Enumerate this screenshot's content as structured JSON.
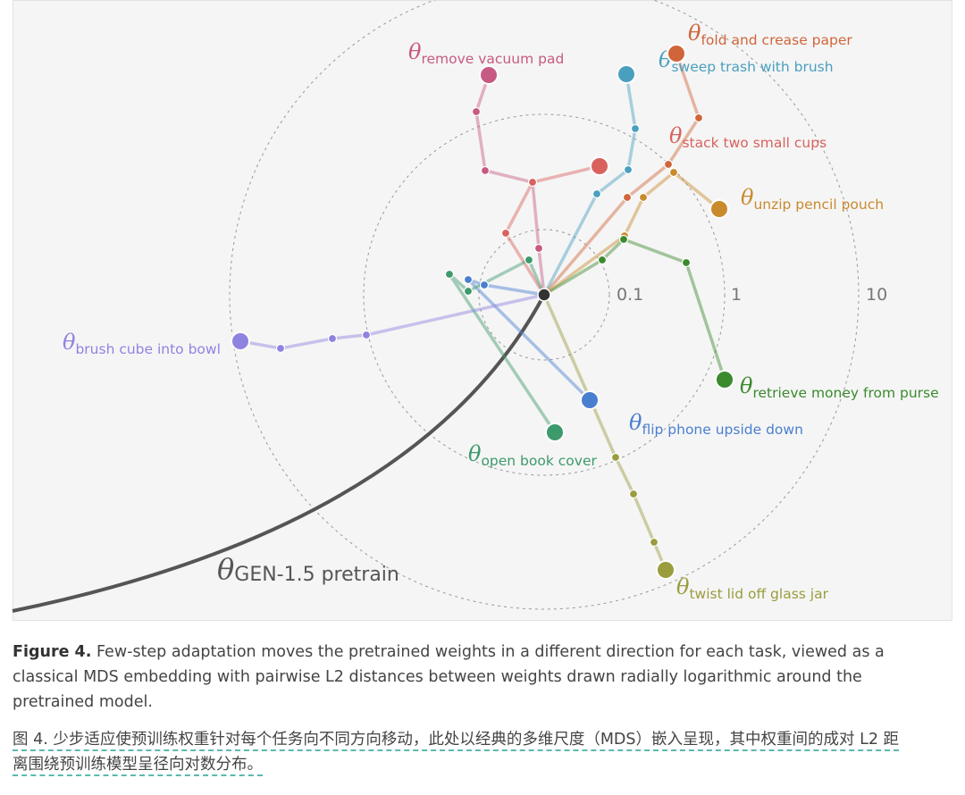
{
  "figure": {
    "symbol": "θ",
    "rings": [
      "0.1",
      "1",
      "10"
    ],
    "pretrain": "GEN-1.5 pretrain",
    "tasks": [
      {
        "label": "remove vacuum pad",
        "color": "#c75a82"
      },
      {
        "label": "stack two small cups",
        "color": "#d9625e"
      },
      {
        "label": "sweep trash with brush",
        "color": "#4a9fbf"
      },
      {
        "label": "fold and crease paper",
        "color": "#d0653a"
      },
      {
        "label": "unzip pencil pouch",
        "color": "#c98a2c"
      },
      {
        "label": "retrieve money from purse",
        "color": "#3b8a2e"
      },
      {
        "label": "flip phone upside down",
        "color": "#4a7fd0"
      },
      {
        "label": "open book cover",
        "color": "#3d9a6c"
      },
      {
        "label": "brush cube into bowl",
        "color": "#8f83e0"
      },
      {
        "label": "twist lid off glass jar",
        "color": "#9a9c3e"
      }
    ]
  },
  "caption": {
    "label": "Figure 4.",
    "text": "Few-step adaptation moves the pretrained weights in a different direction for each task, viewed as a classical MDS embedding with pairwise L2 distances between weights drawn radially logarithmic around the pretrained model."
  },
  "translation": "图 4. 少步适应使预训练权重针对每个任务向不同方向移动，此处以经典的多维尺度（MDS）嵌入呈现，其中权重间的成对 L2 距离围绕预训练模型呈径向对数分布。"
}
